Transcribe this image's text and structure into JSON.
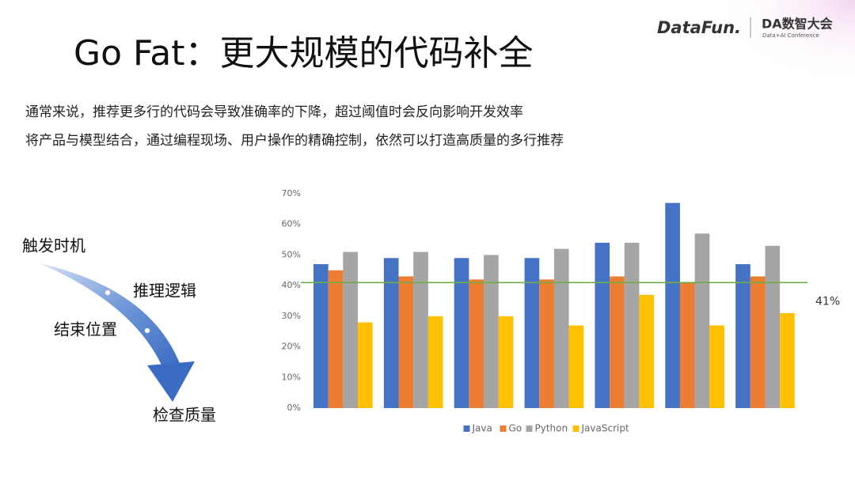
{
  "header": {
    "title": "Go Fat：更大规模的代码补全",
    "logo": "DataFun.",
    "badge": "DA数智大会",
    "badge_sub": "Data+AI Conference"
  },
  "bullets": [
    "通常来说，推荐更多行的代码会导致准确率的下降，超过阈值时会反向影响开发效率",
    "将产品与模型结合，通过编程现场、用户操作的精确控制，依然可以打造高质量的多行推荐"
  ],
  "flow": {
    "steps": [
      "触发时机",
      "推理逻辑",
      "结束位置",
      "检查质量"
    ]
  },
  "chart_data": {
    "type": "bar",
    "categories": [
      null,
      null,
      null,
      null,
      null,
      null,
      null
    ],
    "series": [
      {
        "name": "Java",
        "color": "#4472c4",
        "values": [
          47,
          49,
          49,
          49,
          54,
          67,
          47
        ]
      },
      {
        "name": "Go",
        "color": "#ed7d31",
        "values": [
          45,
          43,
          42,
          42,
          43,
          41,
          43
        ]
      },
      {
        "name": "Python",
        "color": "#a5a5a5",
        "values": [
          51,
          51,
          50,
          52,
          54,
          57,
          53
        ]
      },
      {
        "name": "JavaScript",
        "color": "#ffc000",
        "values": [
          28,
          30,
          30,
          27,
          37,
          27,
          31
        ]
      }
    ],
    "ylim": [
      0,
      70
    ],
    "yticks": [
      {
        "value": 0,
        "label": "0%"
      },
      {
        "value": 10,
        "label": "10%"
      },
      {
        "value": 20,
        "label": "20%"
      },
      {
        "value": 30,
        "label": "30%"
      },
      {
        "value": 40,
        "label": "40%"
      },
      {
        "value": 50,
        "label": "50%"
      },
      {
        "value": 60,
        "label": "60%"
      },
      {
        "value": 70,
        "label": "70%"
      }
    ],
    "reference_line": {
      "value": 41,
      "label": "41%",
      "color": "#70ad47"
    },
    "legend": "bottom"
  }
}
